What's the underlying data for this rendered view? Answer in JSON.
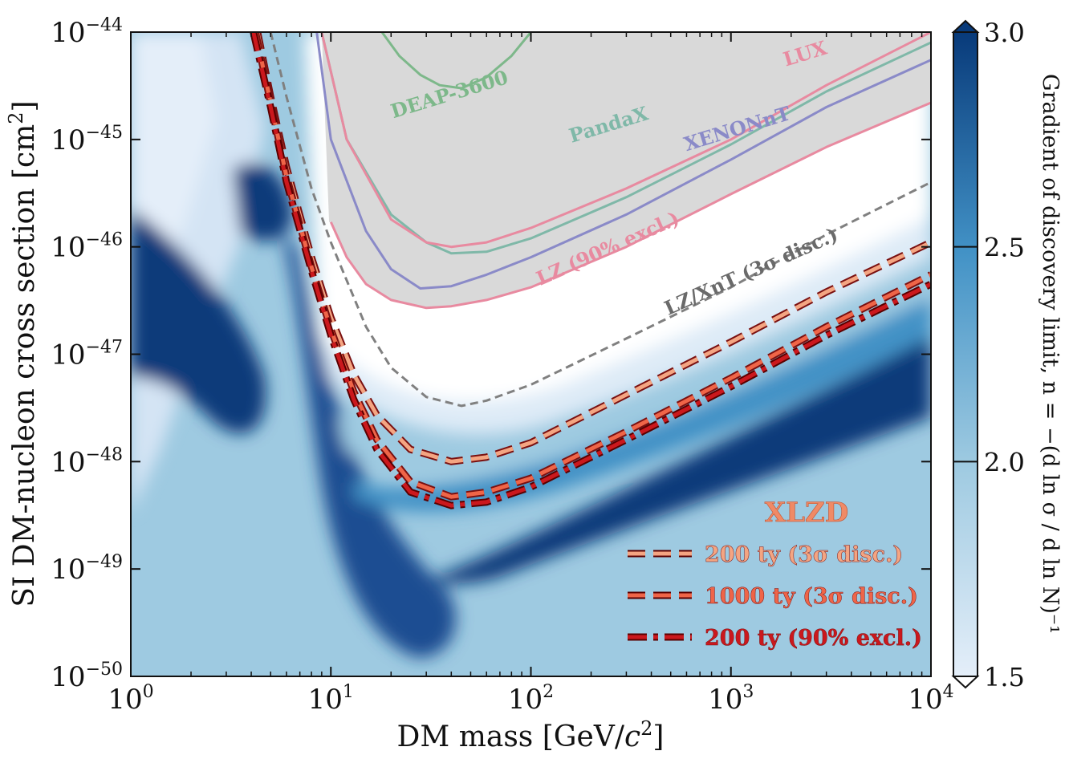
{
  "chart_data": {
    "type": "line",
    "x_scale": "log",
    "y_scale": "log",
    "xlim": [
      1,
      10000
    ],
    "ylim": [
      1e-50,
      1e-44
    ],
    "xlabel_main": "DM mass [GeV/",
    "xlabel_var": "c",
    "xlabel_sup": "2",
    "xlabel_end": "]",
    "ylabel_main": "SI DM-nucleon cross section [cm",
    "ylabel_sup": "2",
    "ylabel_end": "]",
    "x_ticks": [
      {
        "value": 1,
        "base": "10",
        "exp": "0"
      },
      {
        "value": 10,
        "base": "10",
        "exp": "1"
      },
      {
        "value": 100,
        "base": "10",
        "exp": "2"
      },
      {
        "value": 1000,
        "base": "10",
        "exp": "3"
      },
      {
        "value": 10000,
        "base": "10",
        "exp": "4"
      }
    ],
    "y_ticks": [
      {
        "value": 1e-44,
        "base": "10",
        "exp": "−44"
      },
      {
        "value": 1e-45,
        "base": "10",
        "exp": "−45"
      },
      {
        "value": 1e-46,
        "base": "10",
        "exp": "−46"
      },
      {
        "value": 1e-47,
        "base": "10",
        "exp": "−47"
      },
      {
        "value": 1e-48,
        "base": "10",
        "exp": "−48"
      },
      {
        "value": 1e-49,
        "base": "10",
        "exp": "−49"
      },
      {
        "value": 1e-50,
        "base": "10",
        "exp": "−50"
      }
    ],
    "colorbar": {
      "label": "Gradient of discovery limit, n = −(d ln σ / d ln N)⁻¹",
      "range": [
        1.5,
        3.0
      ],
      "ticks": [
        "1.5",
        "2.0",
        "2.5",
        "3.0"
      ],
      "colors": [
        "#e4eef9",
        "#c6dbef",
        "#9ecae1",
        "#6baed6",
        "#4292c6",
        "#2171b5",
        "#08519c",
        "#083a7a"
      ]
    },
    "excluded_region_color": "#d9d9d9",
    "series": [
      {
        "name": "DEAP-3600",
        "color": "#7db88a",
        "style": "solid",
        "x": [
          18,
          22,
          28,
          35,
          45,
          60,
          80,
          100
        ],
        "y": [
          1e-44,
          6e-45,
          4e-45,
          3.2e-45,
          3e-45,
          3.8e-45,
          6e-45,
          1e-44
        ]
      },
      {
        "name": "PandaX",
        "color": "#7fb8a8",
        "style": "solid",
        "x": [
          9,
          12,
          20,
          30,
          40,
          60,
          100,
          300,
          1000,
          3000,
          10000
        ],
        "y": [
          1e-44,
          1e-45,
          2e-46,
          1.1e-46,
          8.7e-47,
          9e-47,
          1.2e-46,
          2.9e-46,
          9e-46,
          2.8e-45,
          8e-45
        ]
      },
      {
        "name": "LUX",
        "color": "#e88aa0",
        "style": "solid",
        "x": [
          9,
          12,
          20,
          30,
          40,
          60,
          100,
          300,
          1000,
          3000,
          10000
        ],
        "y": [
          1e-44,
          1e-45,
          1.8e-46,
          1.1e-46,
          1e-46,
          1.1e-46,
          1.5e-46,
          3.5e-46,
          1e-45,
          3.2e-45,
          1e-44
        ]
      },
      {
        "name": "XENONnT",
        "color": "#8a8ac8",
        "style": "solid",
        "x": [
          8.5,
          10,
          15,
          20,
          28,
          40,
          60,
          100,
          300,
          1000,
          3000,
          10000
        ],
        "y": [
          1e-44,
          1e-45,
          1.4e-46,
          6.2e-47,
          4.1e-47,
          4.3e-47,
          5.5e-47,
          8e-47,
          2e-46,
          6.5e-46,
          2e-45,
          5.5e-45
        ]
      },
      {
        "name": "LZ (90% excl.)",
        "color": "#e88aa0",
        "style": "solid",
        "x": [
          10,
          12,
          15,
          20,
          30,
          40,
          60,
          100,
          300,
          1000,
          3000,
          10000
        ],
        "y": [
          1.7e-46,
          8e-47,
          4.5e-47,
          3.2e-47,
          2.7e-47,
          2.8e-47,
          3.2e-47,
          4.2e-47,
          1e-46,
          3.1e-46,
          8.5e-46,
          2.2e-45
        ]
      },
      {
        "name": "LZ/XnT (3σ disc.)",
        "color": "#808080",
        "style": "dashed",
        "x": [
          5,
          6,
          8,
          10,
          15,
          20,
          30,
          45,
          60,
          100,
          300,
          1000,
          3000,
          10000
        ],
        "y": [
          1e-44,
          2.5e-45,
          3.5e-46,
          1.1e-46,
          1.8e-47,
          7.5e-48,
          4e-48,
          3.3e-48,
          3.7e-48,
          5.2e-48,
          1.4e-47,
          4.2e-47,
          1.3e-46,
          4e-46
        ]
      },
      {
        "name": "200 ty (3σ disc.)",
        "color": "#f4a582",
        "style": "dashed",
        "x": [
          4.3,
          5,
          6,
          8,
          10,
          13,
          17,
          25,
          40,
          60,
          100,
          300,
          1000,
          3000,
          10000
        ],
        "y": [
          1e-44,
          2.5e-45,
          5.5e-46,
          8e-47,
          2.2e-47,
          6.5e-48,
          2.7e-48,
          1.3e-48,
          1e-48,
          1.1e-48,
          1.5e-48,
          4.2e-48,
          1.3e-47,
          3.8e-47,
          1.1e-46
        ]
      },
      {
        "name": "1000 ty (3σ disc.)",
        "color": "#ef6548",
        "style": "dashed",
        "x": [
          4.2,
          5,
          6,
          8,
          10,
          13,
          17,
          25,
          40,
          60,
          100,
          300,
          1000,
          3000,
          10000
        ],
        "y": [
          1e-44,
          2.2e-45,
          4.5e-46,
          6.5e-47,
          1.7e-47,
          4.5e-48,
          1.6e-48,
          6.5e-49,
          4.7e-49,
          5.2e-49,
          7e-49,
          1.9e-48,
          6e-48,
          1.8e-47,
          5.5e-47
        ]
      },
      {
        "name": "200 ty (90% excl.)",
        "color": "#cb181d",
        "style": "dashdot",
        "x": [
          4.1,
          5,
          6,
          8,
          10,
          13,
          17,
          25,
          40,
          60,
          100,
          300,
          1000,
          3000,
          10000
        ],
        "y": [
          1e-44,
          2e-45,
          4e-46,
          6e-47,
          1.5e-47,
          3.8e-48,
          1.3e-48,
          5.2e-49,
          3.9e-49,
          4.2e-49,
          5.8e-49,
          1.6e-48,
          5e-48,
          1.5e-47,
          4.5e-47
        ]
      }
    ],
    "annotations": [
      {
        "text": "DEAP-3600",
        "x": 40,
        "y": 2.3e-45,
        "angle": -17,
        "color": "#7db88a"
      },
      {
        "text": "LUX",
        "x": 2400,
        "y": 5.5e-45,
        "angle": -17,
        "color": "#e88aa0"
      },
      {
        "text": "PandaX",
        "x": 250,
        "y": 1.2e-45,
        "angle": -17,
        "color": "#7fb8a8"
      },
      {
        "text": "XENONnT",
        "x": 1100,
        "y": 1.1e-45,
        "angle": -17,
        "color": "#8a8ac8"
      },
      {
        "text": "LZ (90% excl.)",
        "x": 250,
        "y": 8.5e-47,
        "angle": -24,
        "color": "#e88aa0"
      },
      {
        "text": "LZ/XnT (3σ disc.)",
        "x": 1300,
        "y": 5.2e-47,
        "angle": -24,
        "color": "#6a6a6a"
      }
    ],
    "legend": {
      "title": "XLZD",
      "title_color": "#f08a66",
      "placement": "lower-right",
      "entries": [
        {
          "label": "200 ty (3σ disc.)",
          "color": "#f4a582",
          "style": "dashed"
        },
        {
          "label": "1000 ty (3σ disc.)",
          "color": "#ef6548",
          "style": "dashed"
        },
        {
          "label": "200 ty (90% excl.)",
          "color": "#cb181d",
          "style": "dashdot"
        }
      ]
    }
  }
}
